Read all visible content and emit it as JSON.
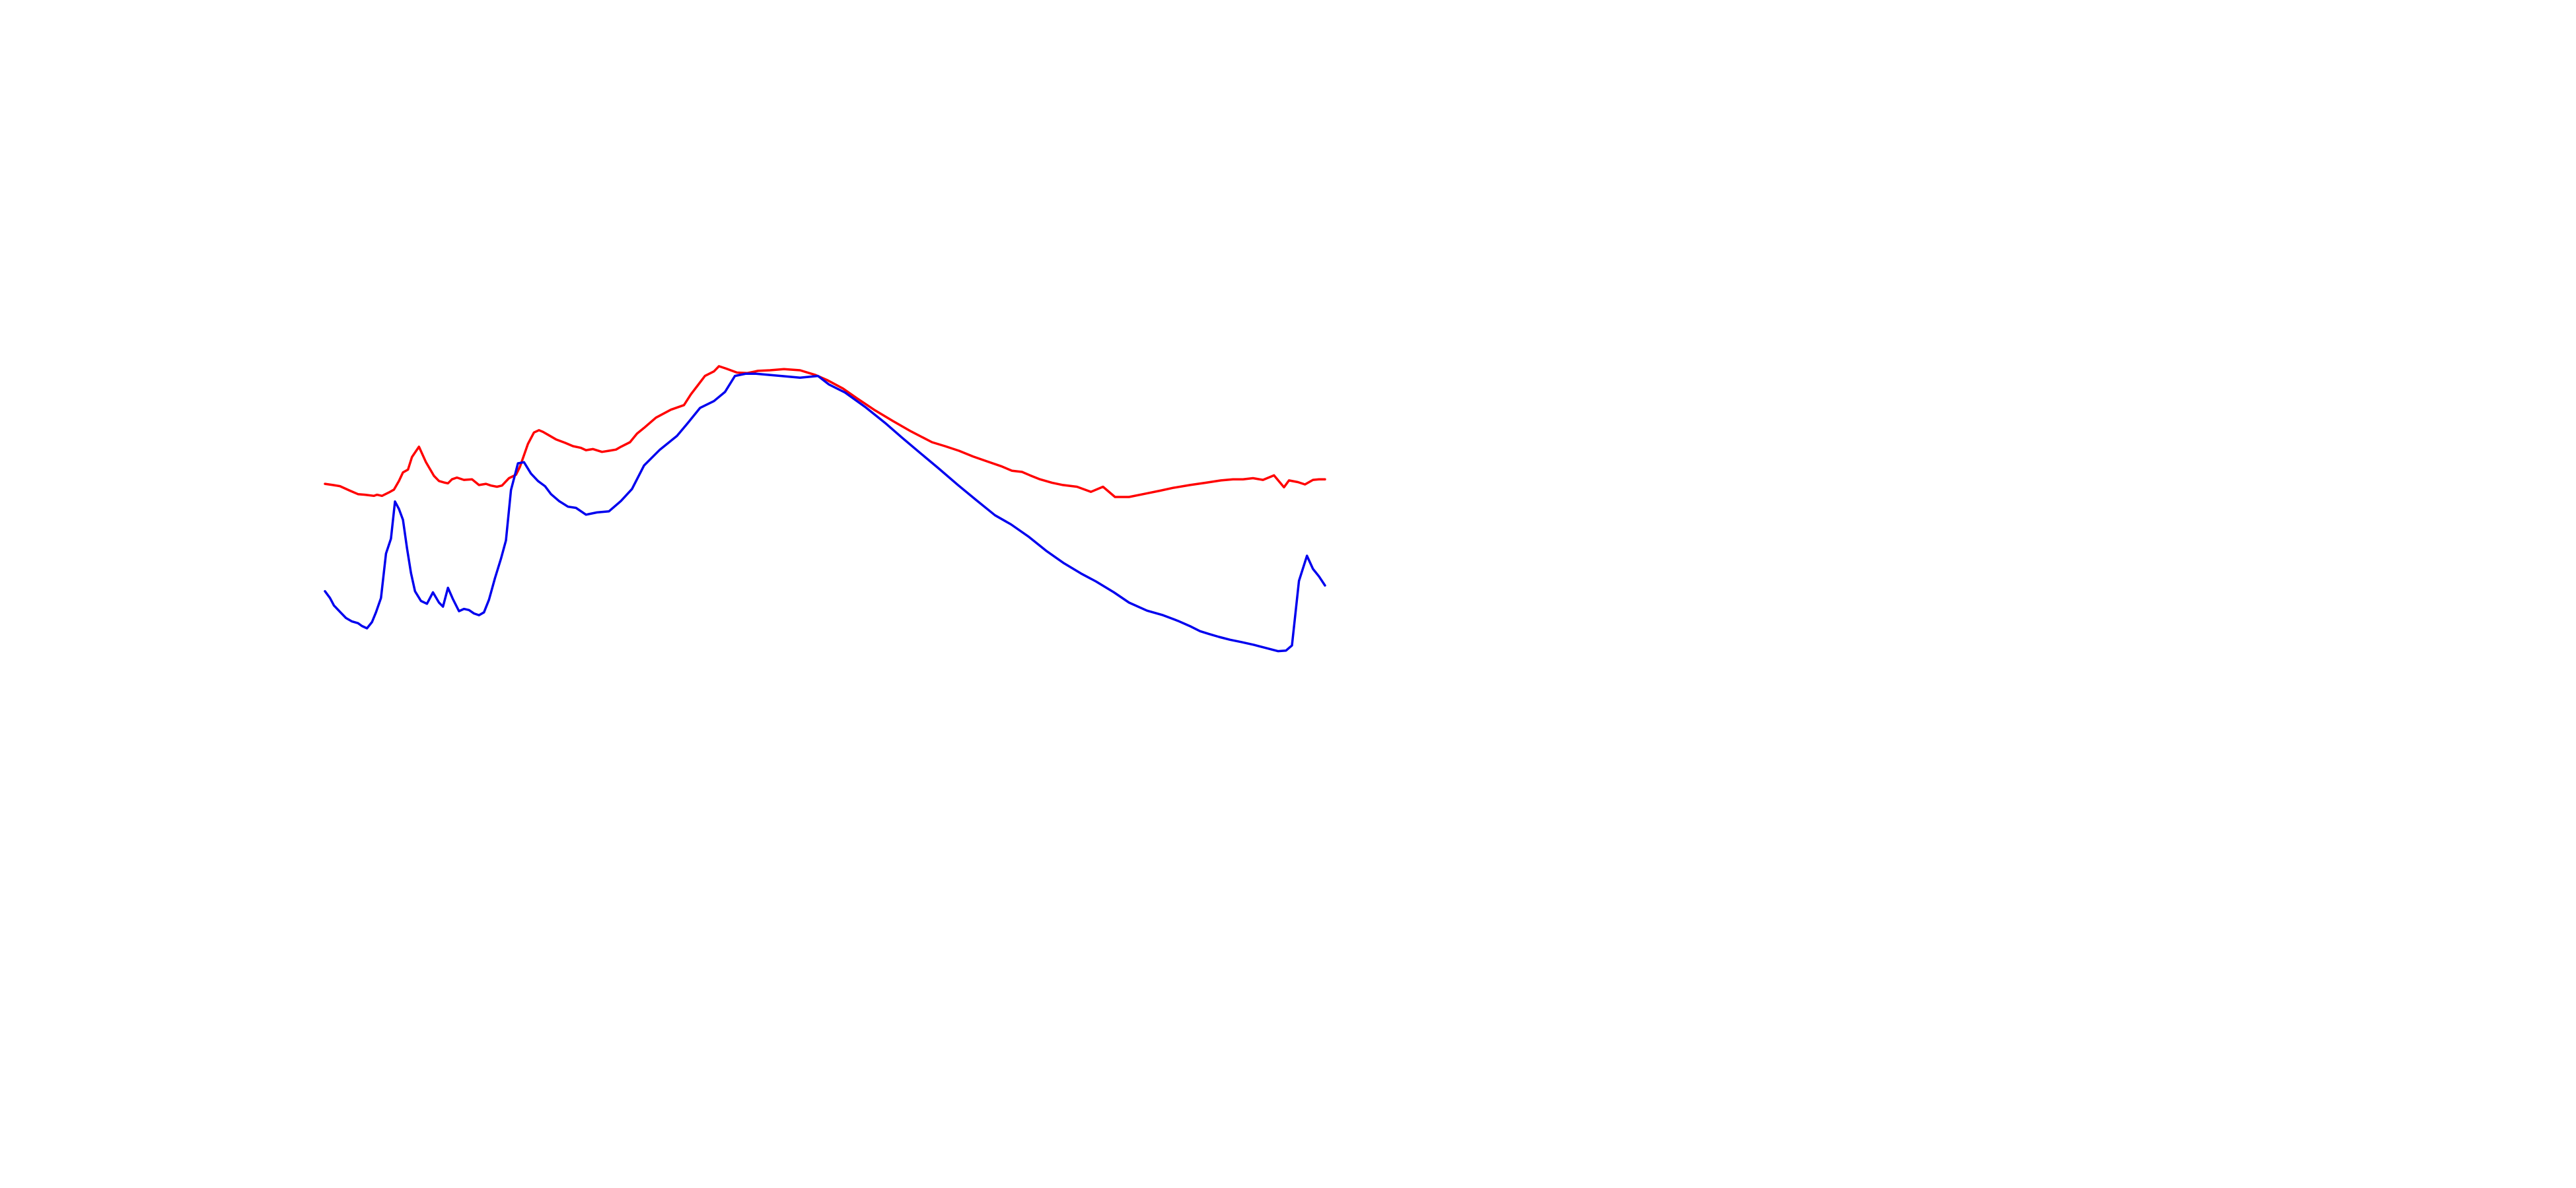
{
  "chart_data": {
    "type": "line",
    "title": "",
    "xlabel": "",
    "ylabel": "",
    "axes_visible": false,
    "grid": false,
    "legend": "none",
    "xlim": [
      0,
      100
    ],
    "ylim": [
      0,
      100
    ],
    "series": [
      {
        "color": "#ff0000",
        "x": [
          0,
          0.8,
          1.5,
          2.5,
          3.3,
          4.0,
          4.9,
          5.2,
          5.7,
          6.4,
          6.9,
          7.4,
          7.8,
          8.3,
          8.7,
          9.4,
          10.1,
          10.9,
          11.4,
          12.0,
          12.3,
          12.7,
          13.2,
          13.9,
          14.7,
          15.4,
          16.1,
          16.6,
          17.2,
          17.7,
          18.4,
          19.1,
          19.5,
          20.3,
          20.9,
          21.4,
          21.8,
          22.3,
          23.1,
          24.0,
          24.8,
          25.6,
          26.1,
          26.8,
          27.7,
          28.4,
          29.1,
          29.6,
          30.5,
          31.2,
          31.9,
          33.1,
          34.6,
          35.9,
          36.6,
          37.3,
          38.0,
          38.9,
          39.4,
          40.1,
          41.2,
          42.2,
          43.3,
          44.5,
          45.9,
          47.5,
          49.0,
          50.2,
          51.8,
          53.2,
          54.9,
          56.8,
          58.6,
          60.7,
          62.0,
          63.4,
          64.8,
          66.1,
          67.6,
          68.7,
          69.7,
          70.5,
          71.5,
          72.7,
          73.8,
          75.2,
          76.6,
          77.8,
          79.0,
          80.4,
          82.1,
          83.5,
          84.8,
          86.5,
          88.1,
          89.6,
          90.8,
          91.8,
          92.8,
          93.8,
          94.9,
          95.9,
          96.4,
          97.3,
          98.0,
          98.8,
          99.4,
          100
        ],
        "y": [
          63.8,
          63.6,
          63.4,
          62.6,
          62.0,
          61.9,
          61.7,
          61.9,
          61.7,
          62.3,
          62.8,
          64.3,
          65.8,
          66.3,
          68.5,
          70.3,
          67.6,
          65.2,
          64.3,
          64.0,
          63.9,
          64.6,
          64.9,
          64.5,
          64.6,
          63.6,
          63.8,
          63.5,
          63.3,
          63.5,
          64.8,
          65.4,
          66.8,
          70.8,
          72.8,
          73.2,
          72.9,
          72.4,
          71.6,
          71.0,
          70.4,
          70.1,
          69.7,
          69.9,
          69.4,
          69.6,
          69.8,
          70.3,
          71.1,
          72.6,
          73.6,
          75.4,
          76.8,
          77.6,
          79.5,
          81.1,
          82.7,
          83.5,
          84.4,
          84.0,
          83.3,
          83.2,
          83.6,
          83.7,
          83.9,
          83.7,
          82.9,
          82.0,
          80.5,
          78.8,
          76.8,
          74.8,
          73.0,
          71.1,
          70.4,
          69.6,
          68.6,
          67.8,
          66.9,
          66.1,
          65.9,
          65.3,
          64.6,
          64.0,
          63.6,
          63.3,
          62.4,
          63.3,
          61.5,
          61.5,
          62.1,
          62.6,
          63.1,
          63.6,
          64.0,
          64.4,
          64.6,
          64.6,
          64.8,
          64.5,
          65.3,
          63.2,
          64.4,
          64.1,
          63.7,
          64.5,
          64.6,
          64.6
        ]
      },
      {
        "color": "#0000ee",
        "x": [
          0,
          0.5,
          0.9,
          1.6,
          2.1,
          2.7,
          3.3,
          3.7,
          4.2,
          4.7,
          5.1,
          5.6,
          6.1,
          6.6,
          7.0,
          7.4,
          7.8,
          8.2,
          8.6,
          9.0,
          9.6,
          10.2,
          10.8,
          11.4,
          11.8,
          12.3,
          12.8,
          13.4,
          13.9,
          14.4,
          14.9,
          15.4,
          15.9,
          16.4,
          17.0,
          17.6,
          18.1,
          18.6,
          19.3,
          19.9,
          20.6,
          21.3,
          22.0,
          22.6,
          23.4,
          24.3,
          25.1,
          26.1,
          27.2,
          28.4,
          29.6,
          30.7,
          31.9,
          33.5,
          35.2,
          36.3,
          37.5,
          38.9,
          40.0,
          41.0,
          42.1,
          43.1,
          44.3,
          45.6,
          47.5,
          49.3,
          50.4,
          52.0,
          54.0,
          56.0,
          57.7,
          59.6,
          61.3,
          63.3,
          65.1,
          67.0,
          68.6,
          70.4,
          72.1,
          73.9,
          75.6,
          77.1,
          78.9,
          80.4,
          82.2,
          83.8,
          85.3,
          86.6,
          87.5,
          88.4,
          89.4,
          90.5,
          91.6,
          92.9,
          94.0,
          95.3,
          96.1,
          96.7,
          97.4,
          98.2,
          98.8,
          99.4,
          100
        ],
        "y": [
          45.0,
          43.8,
          42.5,
          41.2,
          40.3,
          39.7,
          39.4,
          38.9,
          38.5,
          39.6,
          41.3,
          43.8,
          51.6,
          54.2,
          60.7,
          59.4,
          57.5,
          52.6,
          48.2,
          45.0,
          43.3,
          42.8,
          44.8,
          43.0,
          42.3,
          45.6,
          43.6,
          41.5,
          41.9,
          41.7,
          41.1,
          40.8,
          41.3,
          43.5,
          47.3,
          50.7,
          53.9,
          62.7,
          67.4,
          67.6,
          65.6,
          64.3,
          63.4,
          62.0,
          60.8,
          59.8,
          59.6,
          58.4,
          58.8,
          59.0,
          60.8,
          62.9,
          67.0,
          69.8,
          72.2,
          74.5,
          77.1,
          78.3,
          79.9,
          82.7,
          83.1,
          83.1,
          82.9,
          82.7,
          82.4,
          82.7,
          81.2,
          79.8,
          77.3,
          74.5,
          71.9,
          69.1,
          66.6,
          63.6,
          61.0,
          58.3,
          56.7,
          54.5,
          52.1,
          49.9,
          48.1,
          46.7,
          44.8,
          43.0,
          41.6,
          40.8,
          39.8,
          38.8,
          38.0,
          37.5,
          37.0,
          36.5,
          36.1,
          35.6,
          35.1,
          34.5,
          34.6,
          35.5,
          46.8,
          51.2,
          48.9,
          47.6,
          46.0
        ]
      }
    ]
  }
}
